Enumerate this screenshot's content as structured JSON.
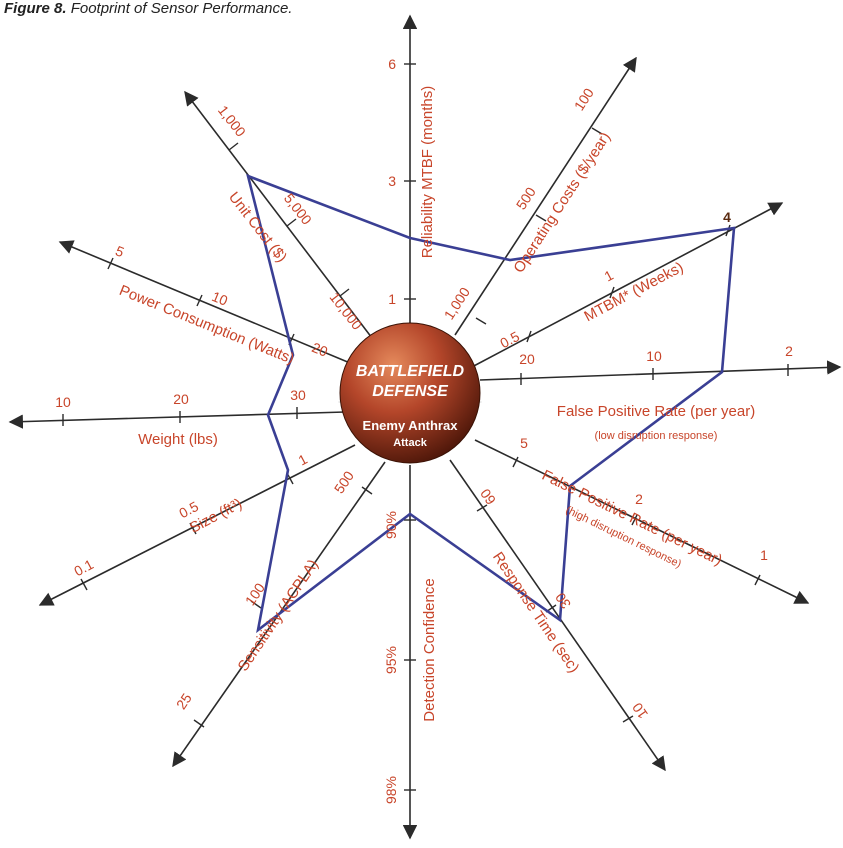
{
  "caption": {
    "label": "Figure 8.",
    "text": "Footprint of Sensor Performance."
  },
  "center": {
    "line1": "BATTLEFIELD",
    "line2": "DEFENSE",
    "line3": "Enemy Anthrax",
    "line4": "Attack"
  },
  "colors": {
    "axis": "#2b2b2b",
    "label": "#c8452a",
    "polygon": "#3a3f94",
    "sphere": "#b4462a"
  },
  "axes": [
    {
      "id": "reliability",
      "title": "Reliability MTBF (months)",
      "ticks": [
        "1",
        "3",
        "6"
      ]
    },
    {
      "id": "operating-costs",
      "title": "Operating Costs ($/year)",
      "ticks": [
        "1,000",
        "500",
        "100"
      ]
    },
    {
      "id": "mtbm",
      "title": "MTBM* (Weeks)",
      "ticks": [
        "0.5",
        "1",
        "4"
      ]
    },
    {
      "id": "false-positive-low",
      "title": "False Positive Rate (per year)",
      "subtitle": "(low disruption response)",
      "ticks": [
        "20",
        "10",
        "2"
      ]
    },
    {
      "id": "false-positive-high",
      "title": "False Positive Rate (per year)",
      "subtitle": "(high disruption response)",
      "ticks": [
        "5",
        "2",
        "1"
      ]
    },
    {
      "id": "response-time",
      "title": "Response Time (sec)",
      "ticks": [
        "60",
        "30",
        "10"
      ]
    },
    {
      "id": "detection-confidence",
      "title": "Detection Confidence",
      "ticks": [
        "90%",
        "95%",
        "98%"
      ]
    },
    {
      "id": "sensitivity",
      "title": "Sensitivity (ACPLA)",
      "ticks": [
        "500",
        "100",
        "25"
      ]
    },
    {
      "id": "size",
      "title": "Size (ft³)",
      "ticks": [
        "1",
        "0.5",
        "0.1"
      ]
    },
    {
      "id": "weight",
      "title": "Weight (lbs)",
      "ticks": [
        "30",
        "20",
        "10"
      ]
    },
    {
      "id": "power-consumption",
      "title": "Power Consumption (Watts)",
      "ticks": [
        "20",
        "10",
        "5"
      ]
    },
    {
      "id": "unit-cost",
      "title": "Unit Cost ($)",
      "ticks": [
        "10,000",
        "5,000",
        "1,000"
      ]
    }
  ]
}
